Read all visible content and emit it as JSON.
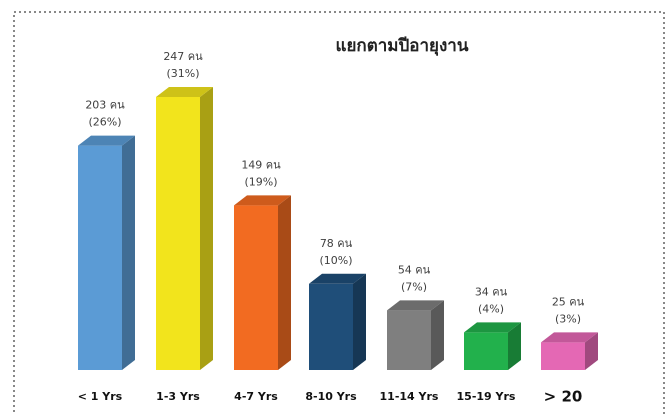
{
  "chart_data": {
    "type": "bar3d",
    "title": "แยกตามปีอายุงาน",
    "categories": [
      "< 1 Yrs",
      "1-3 Yrs",
      "4-7 Yrs",
      "8-10 Yrs",
      "11-14 Yrs",
      "15-19 Yrs",
      "> 20"
    ],
    "values": [
      203,
      247,
      149,
      78,
      54,
      34,
      25
    ],
    "value_labels": [
      "203 คน",
      "247 คน",
      "149 คน",
      "78 คน",
      "54 คน",
      "34 คน",
      "25 คน"
    ],
    "percents": [
      26,
      31,
      19,
      10,
      7,
      4,
      3
    ],
    "percent_labels": [
      "(26%)",
      "(31%)",
      "(19%)",
      "(10%)",
      "(7%)",
      "(4%)",
      "(3%)"
    ],
    "colors": [
      "#5b9bd5",
      "#f2e41c",
      "#f26b21",
      "#1f4e79",
      "#7f7f7f",
      "#22b14c",
      "#e468b4"
    ]
  }
}
